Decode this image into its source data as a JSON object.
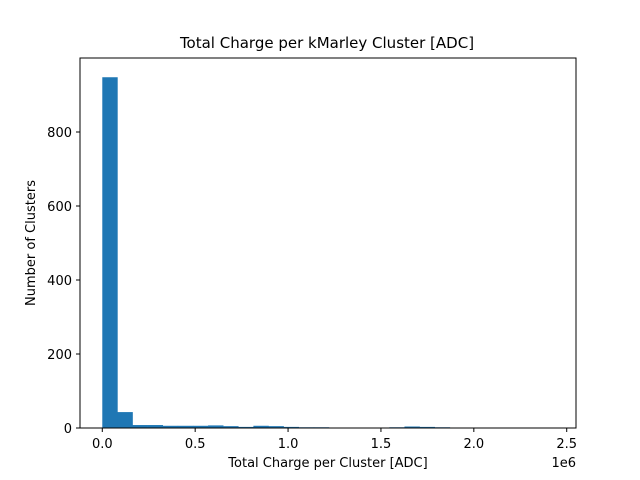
{
  "chart_data": {
    "type": "bar",
    "title": "Total Charge per kMarley Cluster [ADC]",
    "xlabel": "Total Charge per Cluster [ADC]",
    "ylabel": "Number of Clusters",
    "x_offset_label": "1e6",
    "bar_color": "#1f77b4",
    "xlim": [
      -0.12,
      2.55
    ],
    "ylim": [
      0,
      1000
    ],
    "xticks": [
      0.0,
      0.5,
      1.0,
      1.5,
      2.0,
      2.5
    ],
    "xtick_labels": [
      "0.0",
      "0.5",
      "1.0",
      "1.5",
      "2.0",
      "2.5"
    ],
    "yticks": [
      0,
      200,
      400,
      600,
      800
    ],
    "ytick_labels": [
      "0",
      "200",
      "400",
      "600",
      "800"
    ],
    "bin_edges": [
      0.0,
      0.0813,
      0.1627,
      0.244,
      0.3253,
      0.4067,
      0.488,
      0.5693,
      0.6507,
      0.732,
      0.8133,
      0.8947,
      0.976,
      1.0573,
      1.1387,
      1.22,
      1.3013,
      1.3827,
      1.464,
      1.5453,
      1.6267,
      1.708,
      1.7893,
      1.8707,
      1.952,
      2.0333,
      2.1147,
      2.196,
      2.2773,
      2.3587,
      2.44
    ],
    "values": [
      948,
      43,
      8,
      8,
      6,
      6,
      6,
      7,
      5,
      3,
      6,
      5,
      3,
      2,
      2,
      1,
      0,
      0,
      0,
      2,
      4,
      3,
      2,
      0,
      0,
      0,
      0,
      0,
      0,
      1
    ]
  }
}
